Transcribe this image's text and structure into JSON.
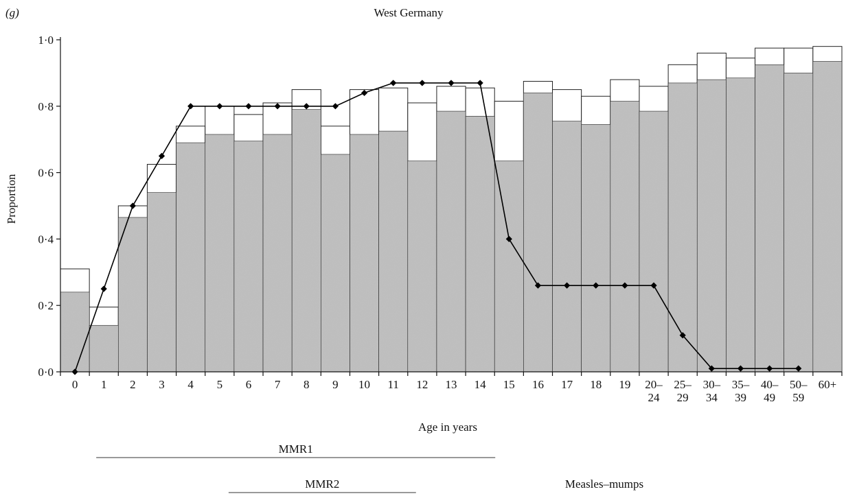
{
  "chart_data": {
    "type": "bar",
    "panel_label": "(g)",
    "title": "West Germany",
    "xlabel": "Age in years",
    "ylabel": "Proportion",
    "ylim": [
      0,
      1
    ],
    "yticks": [
      "0·0",
      "0·2",
      "0·4",
      "0·6",
      "0·8",
      "1·0"
    ],
    "categories": [
      [
        "0"
      ],
      [
        "1"
      ],
      [
        "2"
      ],
      [
        "3"
      ],
      [
        "4"
      ],
      [
        "5"
      ],
      [
        "6"
      ],
      [
        "7"
      ],
      [
        "8"
      ],
      [
        "9"
      ],
      [
        "10"
      ],
      [
        "11"
      ],
      [
        "12"
      ],
      [
        "13"
      ],
      [
        "14"
      ],
      [
        "15"
      ],
      [
        "16"
      ],
      [
        "17"
      ],
      [
        "18"
      ],
      [
        "19"
      ],
      [
        "20–",
        "24"
      ],
      [
        "25–",
        "29"
      ],
      [
        "30–",
        "34"
      ],
      [
        "35–",
        "39"
      ],
      [
        "40–",
        "49"
      ],
      [
        "50–",
        "59"
      ],
      [
        "60+"
      ]
    ],
    "series": [
      {
        "kind": "bar-outer",
        "values": [
          0.31,
          0.195,
          0.5,
          0.625,
          0.74,
          0.8,
          0.775,
          0.81,
          0.85,
          0.74,
          0.85,
          0.855,
          0.81,
          0.86,
          0.855,
          0.815,
          0.875,
          0.85,
          0.83,
          0.88,
          0.86,
          0.925,
          0.96,
          0.945,
          0.975,
          0.975,
          0.98
        ]
      },
      {
        "kind": "bar-inner",
        "values": [
          0.24,
          0.14,
          0.465,
          0.54,
          0.69,
          0.715,
          0.695,
          0.715,
          0.79,
          0.655,
          0.715,
          0.725,
          0.635,
          0.785,
          0.77,
          0.635,
          0.84,
          0.755,
          0.745,
          0.815,
          0.785,
          0.87,
          0.88,
          0.885,
          0.925,
          0.9,
          0.935
        ]
      },
      {
        "kind": "line",
        "values": [
          0.0,
          0.25,
          0.5,
          0.65,
          0.8,
          0.8,
          0.8,
          0.8,
          0.8,
          0.8,
          0.84,
          0.87,
          0.87,
          0.87,
          0.87,
          0.4,
          0.26,
          0.26,
          0.26,
          0.26,
          0.26,
          0.11,
          0.01,
          0.01,
          0.01,
          0.01,
          null
        ]
      }
    ],
    "brackets": [
      {
        "label": "MMR1",
        "from": 1,
        "to": 15
      },
      {
        "label": "MMR2",
        "from": 6,
        "to": 12
      },
      {
        "label": "Measles–mumps"
      }
    ],
    "grid": false,
    "legend": "none"
  }
}
